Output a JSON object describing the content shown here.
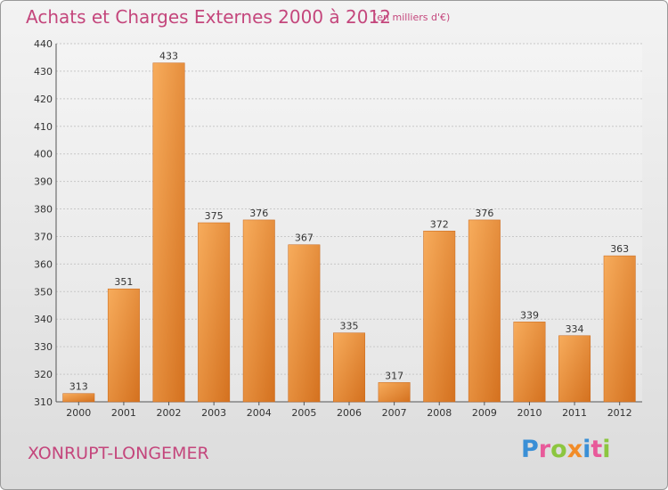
{
  "chart_data": {
    "type": "bar",
    "title": "Achats et Charges Externes 2000 à 2012",
    "subtitle": "(en milliers d'€)",
    "categories": [
      "2000",
      "2001",
      "2002",
      "2003",
      "2004",
      "2005",
      "2006",
      "2007",
      "2008",
      "2009",
      "2010",
      "2011",
      "2012"
    ],
    "values": [
      313,
      351,
      433,
      375,
      376,
      367,
      335,
      317,
      372,
      376,
      339,
      334,
      363
    ],
    "ylim": [
      310,
      440
    ],
    "yticks": [
      310,
      320,
      330,
      340,
      350,
      360,
      370,
      380,
      390,
      400,
      410,
      420,
      430,
      440
    ],
    "grid": true,
    "bar_color": "#f5a04a",
    "bar_color_dark": "#d86f1a"
  },
  "footer": {
    "commune": "XONRUPT-LONGEMER",
    "logo_letters": [
      {
        "ch": "P",
        "color": "#3a8fd6"
      },
      {
        "ch": "r",
        "color": "#e85a9a"
      },
      {
        "ch": "o",
        "color": "#8cc63f"
      },
      {
        "ch": "x",
        "color": "#f28c28"
      },
      {
        "ch": "i",
        "color": "#3a8fd6"
      },
      {
        "ch": "t",
        "color": "#e85a9a"
      },
      {
        "ch": "i",
        "color": "#8cc63f"
      }
    ]
  }
}
